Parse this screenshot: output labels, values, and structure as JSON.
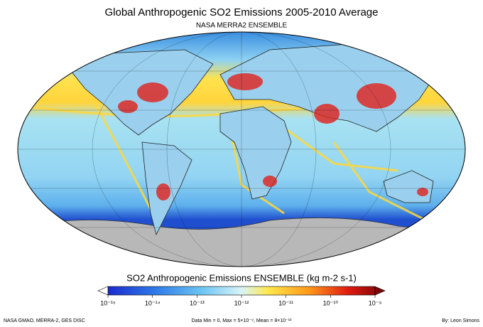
{
  "header": {
    "title": "Global Anthropogenic SO2 Emissions 2005-2010 Average",
    "subtitle": "NASA MERRA2 ENSEMBLE"
  },
  "colorbar": {
    "title": "SO2 Anthropogenic Emissions  ENSEMBLE  (kg m-2 s-1)",
    "log": true,
    "lim": [
      1e-15,
      1e-09
    ],
    "ticks": [
      {
        "value": 1e-15,
        "label": "10⁻¹⁵"
      },
      {
        "value": 1e-14,
        "label": "10⁻¹⁴"
      },
      {
        "value": 1e-13,
        "label": "10⁻¹³"
      },
      {
        "value": 1e-12,
        "label": "10⁻¹²"
      },
      {
        "value": 1e-11,
        "label": "10⁻¹¹"
      },
      {
        "value": 1e-10,
        "label": "10⁻¹⁰"
      },
      {
        "value": 1e-09,
        "label": "10⁻⁹"
      }
    ]
  },
  "footer": {
    "source": "NASA GMAO, MERRA-2, GES DISC",
    "stats": "Data Min = 0, Max = 5×10⁻⁹, Mean = 8×10⁻¹²",
    "credit": "By: Leon Simons"
  }
}
